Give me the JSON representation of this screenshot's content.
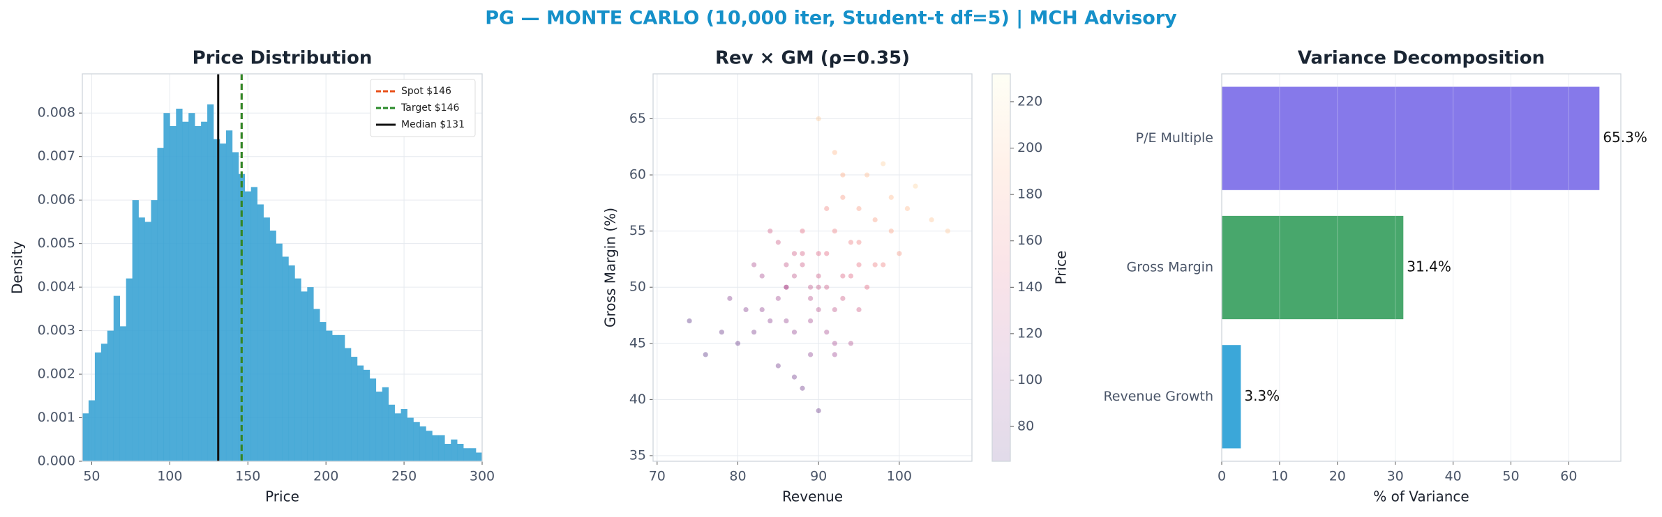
{
  "title": "PG — MONTE CARLO (10,000 iter, Student-t df=5) | MCH Advisory",
  "chart_data": [
    {
      "type": "histogram",
      "title": "Price Distribution",
      "xlabel": "Price",
      "ylabel": "Density",
      "color": "#3aa3d4",
      "bins": [
        44,
        48,
        52,
        56,
        60,
        64,
        68,
        72,
        76,
        80,
        84,
        88,
        92,
        96,
        100,
        104,
        108,
        112,
        116,
        120,
        124,
        128,
        132,
        136,
        140,
        144,
        148,
        152,
        156,
        160,
        164,
        168,
        172,
        176,
        180,
        184,
        188,
        192,
        196,
        200,
        204,
        208,
        212,
        216,
        220,
        224,
        228,
        232,
        236,
        240,
        244,
        248,
        252,
        256,
        260,
        264,
        268,
        272,
        276,
        280,
        284,
        288,
        292,
        296,
        300
      ],
      "values": [
        0.0011,
        0.0014,
        0.0025,
        0.0027,
        0.003,
        0.0038,
        0.0031,
        0.0042,
        0.006,
        0.0056,
        0.0055,
        0.006,
        0.0072,
        0.008,
        0.0077,
        0.0081,
        0.0078,
        0.008,
        0.0077,
        0.0078,
        0.0082,
        0.0074,
        0.0073,
        0.0076,
        0.0071,
        0.0066,
        0.0062,
        0.0063,
        0.0059,
        0.0056,
        0.0053,
        0.005,
        0.0047,
        0.0045,
        0.0042,
        0.0039,
        0.004,
        0.0035,
        0.0032,
        0.003,
        0.0029,
        0.0029,
        0.0026,
        0.0024,
        0.0022,
        0.0021,
        0.0019,
        0.0016,
        0.0017,
        0.0013,
        0.0011,
        0.0012,
        0.001,
        0.0009,
        0.0008,
        0.0007,
        0.0006,
        0.0006,
        0.0004,
        0.0005,
        0.0004,
        0.0003,
        0.0003,
        0.0002
      ],
      "xlim": [
        44,
        300
      ],
      "xticks": [
        50,
        100,
        150,
        200,
        250,
        300
      ],
      "ylim": [
        0,
        0.0089
      ],
      "yticks": [
        {
          "value": 0,
          "label": "0.000"
        },
        {
          "value": 0.001,
          "label": "0.001"
        },
        {
          "value": 0.002,
          "label": "0.002"
        },
        {
          "value": 0.003,
          "label": "0.003"
        },
        {
          "value": 0.004,
          "label": "0.004"
        },
        {
          "value": 0.005,
          "label": "0.005"
        },
        {
          "value": 0.006,
          "label": "0.006"
        },
        {
          "value": 0.007,
          "label": "0.007"
        },
        {
          "value": 0.008,
          "label": "0.008"
        }
      ],
      "lines": [
        {
          "label": "Spot $146",
          "value": 146,
          "color": "#e8501a",
          "dashed": true
        },
        {
          "label": "Target $146",
          "value": 146,
          "color": "#2a8a2a",
          "dashed": true
        },
        {
          "label": "Median $131",
          "value": 131,
          "color": "#111111",
          "dashed": false
        }
      ],
      "legend": "upper right",
      "grid": true
    },
    {
      "type": "scatter",
      "title": "Rev × GM (ρ=0.35)",
      "xlabel": "Revenue",
      "ylabel": "Gross Margin (%)",
      "x": [
        85,
        88,
        90,
        92,
        95,
        87,
        83,
        91,
        93,
        97,
        89,
        86,
        94,
        99,
        82,
        80,
        96,
        100,
        84,
        90,
        92,
        88,
        78,
        102,
        93,
        87,
        91,
        95,
        98,
        85,
        89,
        86,
        94,
        81,
        90,
        96,
        76,
        104,
        92,
        88,
        83,
        91,
        99,
        87,
        93,
        90,
        85,
        97,
        89,
        94,
        84,
        92,
        101,
        79,
        88,
        90,
        95,
        86,
        93,
        106,
        74,
        91,
        87,
        98,
        89,
        82,
        95,
        90,
        92,
        86
      ],
      "y": [
        49,
        52,
        50,
        55,
        57,
        46,
        48,
        53,
        51,
        56,
        44,
        50,
        54,
        58,
        52,
        45,
        60,
        53,
        47,
        51,
        48,
        55,
        46,
        59,
        49,
        42,
        57,
        52,
        61,
        54,
        47,
        50,
        45,
        48,
        53,
        50,
        44,
        56,
        62,
        41,
        51,
        46,
        55,
        53,
        58,
        48,
        43,
        52,
        50,
        51,
        55,
        44,
        57,
        49,
        53,
        39,
        54,
        47,
        60,
        55,
        47,
        50,
        51,
        52,
        49,
        46,
        48,
        65,
        45,
        52
      ],
      "price": [
        110,
        134,
        130,
        161,
        180,
        101,
        99,
        148,
        144,
        181,
        97,
        118,
        162,
        197,
        116,
        75,
        198,
        175,
        97,
        135,
        126,
        149,
        74,
        211,
        134,
        81,
        168,
        155,
        209,
        135,
        112,
        118,
        117,
        93,
        145,
        148,
        66,
        202,
        196,
        79,
        114,
        113,
        182,
        136,
        179,
        120,
        80,
        161,
        127,
        147,
        137,
        106,
        198,
        92,
        139,
        75,
        165,
        103,
        189,
        203,
        67,
        133,
        126,
        164,
        122,
        86,
        135,
        205,
        111,
        128
      ],
      "xlim": [
        69.5,
        109
      ],
      "xticks": [
        70,
        80,
        90,
        100
      ],
      "ylim": [
        34.5,
        69
      ],
      "yticks": [
        35,
        40,
        45,
        50,
        55,
        60,
        65
      ],
      "colormap": [
        "#3b0f70",
        "#8c2981",
        "#de4968",
        "#fe9f6d",
        "#fcfdbf"
      ],
      "colorbar": {
        "label": "Price",
        "lim": [
          65,
          232
        ],
        "ticks": [
          80,
          100,
          120,
          140,
          160,
          180,
          200,
          220
        ]
      },
      "grid": true
    },
    {
      "type": "barh",
      "title": "Variance Decomposition",
      "xlabel": "% of Variance",
      "categories": [
        "P/E Multiple",
        "Gross Margin",
        "Revenue Growth"
      ],
      "values": [
        65.3,
        31.4,
        3.3
      ],
      "value_labels": [
        "65.3%",
        "31.4%",
        "3.3%"
      ],
      "colors": [
        "#7c6ee8",
        "#38a05f",
        "#2aa0d6"
      ],
      "xlim": [
        0,
        69
      ],
      "xticks": [
        0,
        10,
        20,
        30,
        40,
        50,
        60
      ],
      "grid": true
    }
  ]
}
